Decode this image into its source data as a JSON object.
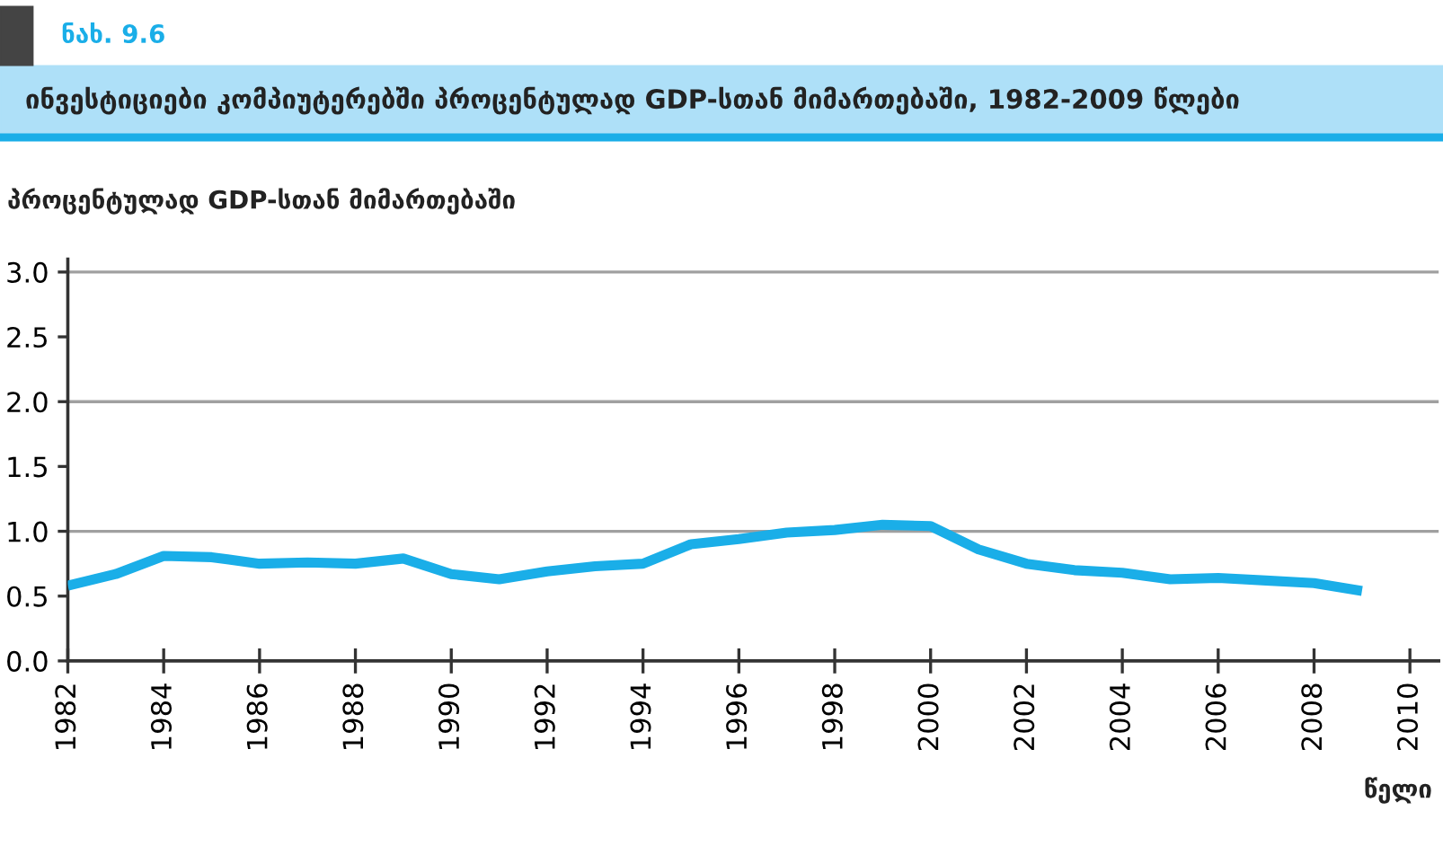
{
  "chart_data": {
    "type": "line",
    "title": "ინვესტიციები კომპიუტერებში პროცენტულად GDP-სთან მიმართებაში, 1982-2009 წლები",
    "ylabel": "პროცენტულად GDP-სთან მიმართებაში",
    "xlabel": "წელი",
    "annotations": [
      "ნახ. 9.6"
    ],
    "x": [
      1982,
      1983,
      1984,
      1985,
      1986,
      1987,
      1988,
      1989,
      1990,
      1991,
      1992,
      1993,
      1994,
      1995,
      1996,
      1997,
      1998,
      1999,
      2000,
      2001,
      2002,
      2003,
      2004,
      2005,
      2006,
      2007,
      2008,
      2009
    ],
    "series": [
      {
        "color": "#1aaee8",
        "values": [
          0.58,
          0.67,
          0.81,
          0.8,
          0.75,
          0.76,
          0.75,
          0.79,
          0.67,
          0.63,
          0.69,
          0.73,
          0.75,
          0.9,
          0.94,
          0.99,
          1.01,
          1.05,
          1.04,
          0.86,
          0.75,
          0.7,
          0.68,
          0.63,
          0.64,
          0.62,
          0.6,
          0.54
        ]
      }
    ],
    "xlim": [
      1982,
      2010.6
    ],
    "xticks": [
      1982,
      1984,
      1986,
      1988,
      1990,
      1992,
      1994,
      1996,
      1998,
      2000,
      2002,
      2004,
      2006,
      2008,
      2010
    ],
    "ylim": [
      0,
      3.1
    ],
    "yticks": [
      {
        "value": 0,
        "label": "0.0"
      },
      0.5,
      {
        "value": 1,
        "label": "1.0"
      },
      1.5,
      {
        "value": 2,
        "label": "2.0"
      },
      2.5,
      {
        "value": 3,
        "label": "3.0"
      }
    ],
    "ref_lines": [
      {
        "axis": "y",
        "value": 1,
        "color": "#a0a0a0"
      },
      {
        "axis": "y",
        "value": 2,
        "color": "#a0a0a0"
      },
      {
        "axis": "y",
        "value": 3,
        "color": "#a0a0a0"
      }
    ],
    "grid": false,
    "legend": false,
    "marker": "none",
    "line_style": "solid"
  }
}
